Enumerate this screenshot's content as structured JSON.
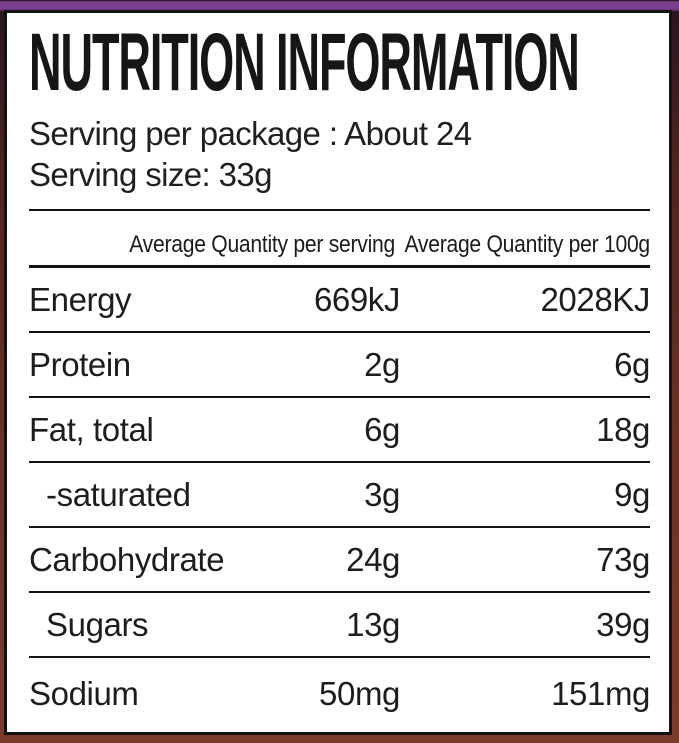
{
  "colors": {
    "packaging_purple": "#7c3e8e",
    "packaging_maroon": "#6e3023",
    "label_background": "#ffffff",
    "border": "#121212",
    "text": "#1d1d1d"
  },
  "label": {
    "title": "NUTRITION INFORMATION",
    "serving_per_package": "Serving per package : About 24",
    "serving_size": "Serving size: 33g",
    "columns": {
      "per_serving": "Average Quantity per serving",
      "per_100g": "Average Quantity per 100g"
    },
    "rows": [
      {
        "nutrient": "Energy",
        "per_serving": "669kJ",
        "per_100g": "2028KJ"
      },
      {
        "nutrient": "Protein",
        "per_serving": "2g",
        "per_100g": "6g"
      },
      {
        "nutrient": "Fat, total",
        "per_serving": "6g",
        "per_100g": "18g"
      },
      {
        "nutrient": "-saturated",
        "per_serving": "3g",
        "per_100g": "9g"
      },
      {
        "nutrient": "Carbohydrate",
        "per_serving": "24g",
        "per_100g": "73g"
      },
      {
        "nutrient": "Sugars",
        "per_serving": "13g",
        "per_100g": "39g"
      },
      {
        "nutrient": "Sodium",
        "per_serving": "50mg",
        "per_100g": "151mg"
      }
    ]
  }
}
